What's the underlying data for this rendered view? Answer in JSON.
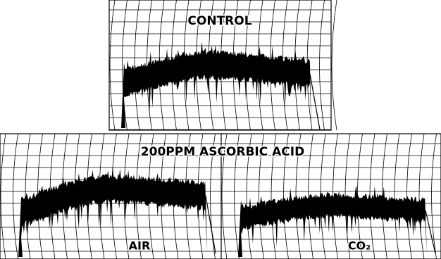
{
  "panels": [
    {
      "label": "CONTROL"
    },
    {
      "label": "200PPM ASCORBIC ACID"
    },
    {
      "label": "AIR"
    },
    {
      "label": "CO₂"
    }
  ]
}
